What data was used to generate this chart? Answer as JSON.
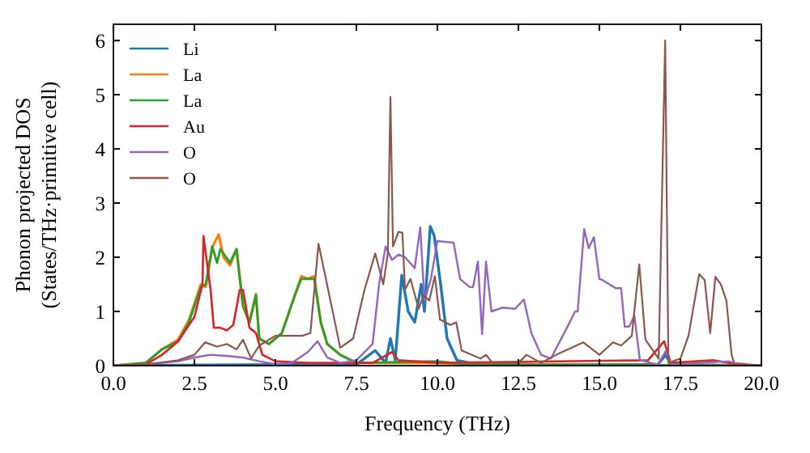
{
  "chart_data": {
    "type": "line",
    "xlabel": "Frequency (THz)",
    "ylabel": "Phonon projected DOS\n(States/THz·primitive cell)",
    "xlim": [
      0,
      20
    ],
    "ylim": [
      0,
      6.3
    ],
    "xticks": [
      {
        "value": 0,
        "label": "0.0"
      },
      {
        "value": 2.5,
        "label": "2.5"
      },
      {
        "value": 5,
        "label": "5.0"
      },
      {
        "value": 7.5,
        "label": "7.5"
      },
      {
        "value": 10,
        "label": "10.0"
      },
      {
        "value": 12.5,
        "label": "12.5"
      },
      {
        "value": 15,
        "label": "15.0"
      },
      {
        "value": 17.5,
        "label": "17.5"
      },
      {
        "value": 20,
        "label": "20.0"
      }
    ],
    "yticks": [
      0,
      1,
      2,
      3,
      4,
      5,
      6
    ],
    "legend": "top left",
    "grid": false,
    "marker": "none",
    "line_style": "solid",
    "series": [
      {
        "name": "Li",
        "color": "#1f77b4",
        "x": [
          0,
          5,
          7.5,
          8.08,
          8.4,
          8.55,
          8.7,
          8.9,
          9.1,
          9.3,
          9.5,
          9.6,
          9.78,
          9.9,
          10.1,
          10.3,
          10.6,
          11,
          13,
          16.8,
          17.05,
          17.2,
          20
        ],
        "values": [
          0,
          0.02,
          0.02,
          0.28,
          0.05,
          0.5,
          0.1,
          1.67,
          1,
          0.8,
          1.5,
          1,
          2.57,
          2.4,
          1.5,
          0.5,
          0.1,
          0.05,
          0.02,
          0.02,
          0.2,
          0.02,
          0
        ]
      },
      {
        "name": "La",
        "color": "#ff7f0e",
        "x": [
          0,
          1,
          1.5,
          2,
          2.33,
          2.7,
          2.85,
          3.05,
          3.25,
          3.4,
          3.6,
          3.8,
          4,
          4.2,
          4.4,
          4.5,
          4.8,
          5.2,
          5.6,
          5.8,
          6,
          6.2,
          6.4,
          6.6,
          7,
          7.5,
          10,
          11,
          20
        ],
        "values": [
          0,
          0.05,
          0.3,
          0.48,
          0.84,
          1.5,
          1.45,
          2.18,
          2.42,
          2,
          1.85,
          2.15,
          1.1,
          0.8,
          1.32,
          0.5,
          0.4,
          0.6,
          1.3,
          1.65,
          1.6,
          1.65,
          0.8,
          0.4,
          0.2,
          0.05,
          0.05,
          0.02,
          0
        ]
      },
      {
        "name": "La",
        "color": "#2ca02c",
        "x": [
          0,
          1,
          1.5,
          2,
          2.33,
          2.7,
          2.85,
          3.05,
          3.2,
          3.3,
          3.6,
          3.8,
          4,
          4.2,
          4.4,
          4.5,
          4.8,
          5.2,
          5.6,
          5.8,
          6,
          6.2,
          6.4,
          6.6,
          7,
          7.5,
          10,
          11,
          20
        ],
        "values": [
          0,
          0.05,
          0.3,
          0.45,
          0.8,
          1.45,
          1.5,
          2.2,
          1.9,
          2.15,
          1.9,
          2.15,
          1.1,
          0.8,
          1.3,
          0.5,
          0.4,
          0.6,
          1.3,
          1.6,
          1.6,
          1.6,
          0.8,
          0.4,
          0.2,
          0.05,
          0.08,
          0.02,
          0
        ]
      },
      {
        "name": "Au",
        "color": "#d62728",
        "x": [
          0,
          1,
          1.5,
          2,
          2.5,
          2.75,
          2.78,
          3,
          3.1,
          3.3,
          3.5,
          3.7,
          3.9,
          4,
          4.2,
          4.4,
          4.6,
          5,
          6,
          8,
          8.6,
          8.8,
          10,
          16.5,
          17,
          17.2,
          18.5,
          19,
          20
        ],
        "values": [
          0,
          0.02,
          0.2,
          0.45,
          0.9,
          1.5,
          2.39,
          1.4,
          0.7,
          0.7,
          0.65,
          0.75,
          1.4,
          1.4,
          0.7,
          0.6,
          0.2,
          0.08,
          0.05,
          0.05,
          0.25,
          0.1,
          0.05,
          0.1,
          0.45,
          0.05,
          0.1,
          0.05,
          0
        ]
      },
      {
        "name": "O",
        "color": "#9467bd",
        "x": [
          0,
          1,
          2,
          2.5,
          3,
          3.5,
          4,
          4.5,
          5,
          5.5,
          6,
          6.3,
          6.6,
          7,
          7.5,
          8,
          8.2,
          8.4,
          8.6,
          8.8,
          9,
          9.3,
          9.47,
          9.6,
          9.8,
          10,
          10.5,
          10.7,
          11,
          11.1,
          11.25,
          11.38,
          11.5,
          11.67,
          12,
          12.4,
          12.67,
          12.9,
          13.2,
          13.5,
          14,
          14.25,
          14.33,
          14.53,
          14.67,
          14.83,
          15,
          15.1,
          15.5,
          15.67,
          15.78,
          15.92,
          16.08,
          16.25,
          16.8,
          17.05,
          17.2,
          19,
          19.3,
          20
        ],
        "values": [
          0,
          0.02,
          0.08,
          0.15,
          0.2,
          0.18,
          0.15,
          0.08,
          0.03,
          0.05,
          0.25,
          0.45,
          0.15,
          0.05,
          0.1,
          0.4,
          1.5,
          2.2,
          1.95,
          2.05,
          2,
          1.8,
          2.55,
          1.2,
          1.6,
          2.3,
          2.27,
          1.6,
          1.45,
          1.45,
          1.92,
          0.58,
          1.92,
          1,
          1.07,
          1.05,
          1.22,
          0.6,
          0.2,
          0.13,
          0.7,
          1,
          1,
          2.52,
          2.17,
          2.37,
          1.6,
          1.58,
          1.43,
          1.43,
          0.72,
          0.72,
          0.92,
          0.1,
          0.02,
          0.27,
          0.02,
          0.08,
          0.02,
          0
        ]
      },
      {
        "name": "O",
        "color": "#8c564b",
        "x": [
          0,
          1,
          2,
          2.5,
          2.83,
          3.2,
          3.5,
          3.8,
          4,
          4.25,
          4.5,
          5,
          5.83,
          6.08,
          6.33,
          6.5,
          7,
          7.4,
          7.75,
          8.08,
          8.33,
          8.47,
          8.55,
          8.63,
          8.8,
          8.92,
          9,
          9.17,
          9.42,
          9.58,
          9.75,
          9.92,
          10.08,
          10.4,
          10.58,
          10.75,
          11.33,
          11.5,
          11.7,
          12.5,
          12.75,
          13.2,
          13.67,
          14.5,
          15,
          15.42,
          15.67,
          16,
          16.23,
          16.42,
          16.83,
          17.03,
          17.13,
          17.5,
          17.75,
          18.08,
          18.25,
          18.42,
          18.58,
          18.75,
          18.92,
          19.08,
          19.17,
          20
        ],
        "values": [
          0,
          0.02,
          0.1,
          0.2,
          0.43,
          0.35,
          0.4,
          0.3,
          0.48,
          0.13,
          0.37,
          0.55,
          0.55,
          0.6,
          2.25,
          1.77,
          0.33,
          0.5,
          1.4,
          2.07,
          1.5,
          2.07,
          4.96,
          2.2,
          2.47,
          2.45,
          1.4,
          1.6,
          1.05,
          1.3,
          1.2,
          1.65,
          0.85,
          0.75,
          0.8,
          0.28,
          0.13,
          0.2,
          0.05,
          0.05,
          0.2,
          0.05,
          0.2,
          0.43,
          0.2,
          0.43,
          0.37,
          0.55,
          1.87,
          0.48,
          0.13,
          6,
          0.05,
          0.13,
          0.55,
          1.69,
          1.58,
          0.6,
          1.64,
          1.5,
          1.2,
          0.2,
          0.02,
          0
        ]
      }
    ]
  }
}
